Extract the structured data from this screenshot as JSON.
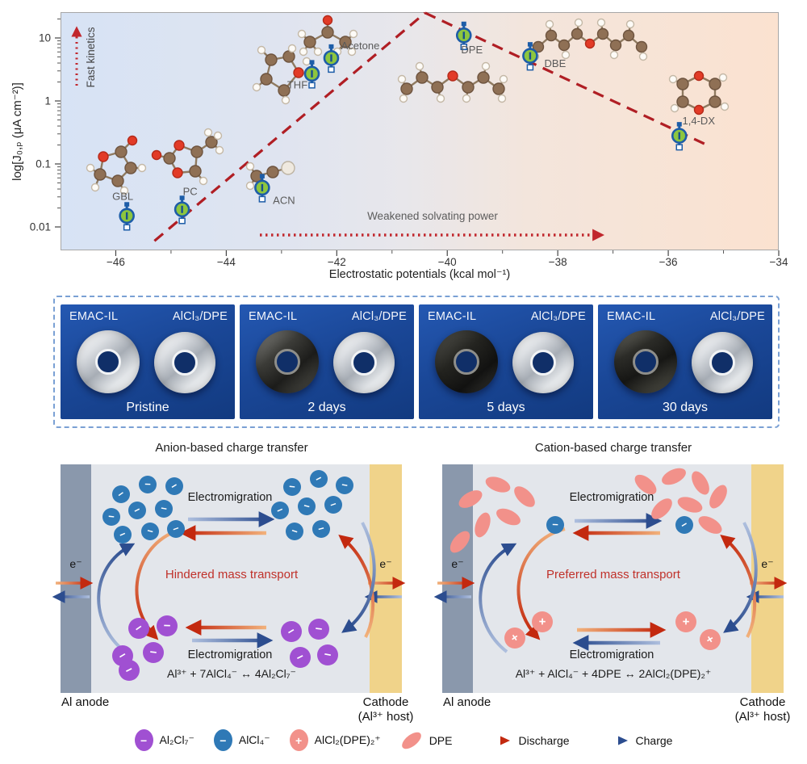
{
  "chart_data": {
    "type": "scatter",
    "title": "",
    "xlabel": "Electrostatic potentials (kcal mol⁻¹)",
    "ylabel": "log[J₀,ₚ (μA cm⁻²)]",
    "xlim": [
      -47,
      -34
    ],
    "ylim": [
      0.0042,
      25.5
    ],
    "y_scale": "log",
    "grid": false,
    "x_ticks": [
      -46,
      -44,
      -42,
      -40,
      -38,
      -36,
      -34
    ],
    "x_minor_ticks": [
      -45,
      -43,
      -41,
      -39,
      -37,
      -35
    ],
    "y_ticks": [
      10,
      1,
      0.1,
      0.01
    ],
    "points": [
      {
        "name": "GBL",
        "x": -45.8,
        "y": 0.015
      },
      {
        "name": "PC",
        "x": -44.8,
        "y": 0.019
      },
      {
        "name": "ACN",
        "x": -43.35,
        "y": 0.042
      },
      {
        "name": "THF",
        "x": -42.45,
        "y": 2.7
      },
      {
        "name": "Acetone",
        "x": -42.1,
        "y": 4.8
      },
      {
        "name": "DPE",
        "x": -39.7,
        "y": 11
      },
      {
        "name": "DBE",
        "x": -38.5,
        "y": 5.2
      },
      {
        "name": "1,4-DX",
        "x": -35.8,
        "y": 0.28
      }
    ],
    "trend_lines": [
      {
        "x1": -45.3,
        "y1": 0.006,
        "x2": -40.4,
        "y2": 25
      },
      {
        "x1": -40.4,
        "y1": 25,
        "x2": -35.3,
        "y2": 0.2
      }
    ],
    "annotations": {
      "fast_kinetics": "Fast kinetics",
      "weakened": "Weakened solvating power"
    },
    "legend_position": "none"
  },
  "aging_panel": {
    "sample_left": "EMAC-IL",
    "sample_right": "AlCl₃/DPE",
    "panels": [
      {
        "caption": "Pristine"
      },
      {
        "caption": "2 days"
      },
      {
        "caption": "5 days"
      },
      {
        "caption": "30 days"
      }
    ]
  },
  "mechanism": {
    "left": {
      "title": "Anion-based charge transfer",
      "migration_top": "Electromigration",
      "migration_bottom": "Electromigration",
      "center_text": "Hindered mass transport",
      "equation": "Al³⁺ + 7AlCl₄⁻ ↔ 4Al₂Cl₇⁻",
      "electron": "e⁻",
      "anode_label": "Al anode",
      "cathode_label_1": "Cathode",
      "cathode_label_2": "(Al³⁺ host)"
    },
    "right": {
      "title": "Cation-based charge transfer",
      "migration_top": "Electromigration",
      "migration_bottom": "Electromigration",
      "center_text": "Preferred mass transport",
      "equation": "Al³⁺ + AlCl₄⁻ + 4DPE ↔ 2AlCl₂(DPE)₂⁺",
      "electron": "e⁻",
      "anode_label": "Al anode",
      "cathode_label_1": "Cathode",
      "cathode_label_2": "(Al³⁺ host)"
    }
  },
  "legend": {
    "items": [
      {
        "label": "Al₂Cl₇⁻",
        "swatch": "purple-minus"
      },
      {
        "label": "AlCl₄⁻",
        "swatch": "blue-minus"
      },
      {
        "label": "AlCl₂(DPE)₂⁺",
        "swatch": "salmon-plus"
      },
      {
        "label": "DPE",
        "swatch": "salmon-ellipse"
      },
      {
        "label": "Discharge",
        "swatch": "discharge-arrow"
      },
      {
        "label": "Charge",
        "swatch": "charge-arrow"
      }
    ]
  },
  "colors": {
    "trend_red": "#b01e24",
    "dotted_red": "#c1272d",
    "anion_blue": "#2f79b6",
    "cation_purple": "#a050d2",
    "salmon": "#f2918a",
    "marker_green": "#8dc63f",
    "marker_blue": "#1d5da8",
    "charge_dark": "#2c4d8f",
    "charge_light": "#aebfde",
    "discharge_dark": "#c3290f",
    "discharge_light": "#f2b27c",
    "anode_gray": "#8a98ac",
    "cathode_yellow": "#f0d38a",
    "electrolyte": "#e3e6eb",
    "photo_blue": "#1a4797"
  }
}
